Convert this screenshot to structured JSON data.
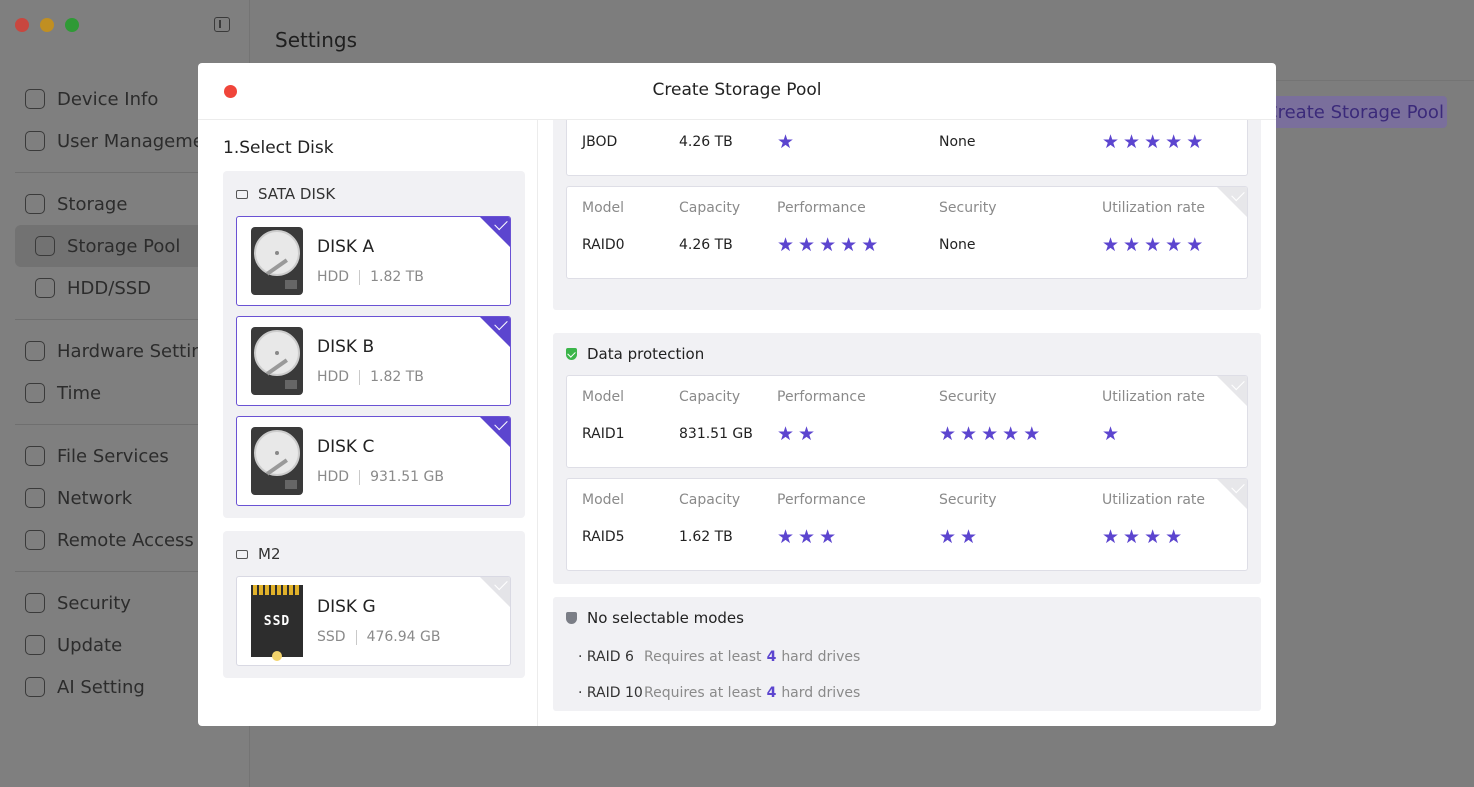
{
  "app": {
    "title": "Settings",
    "bg_create_button": "Create Storage Pool",
    "sidebar": [
      {
        "label": "Device Info",
        "icon": "device-info-icon"
      },
      {
        "label": "User Management",
        "icon": "user-icon"
      },
      {
        "label": "Storage",
        "icon": "storage-icon"
      },
      {
        "label": "Storage Pool",
        "icon": "storage-pool-icon",
        "active": true
      },
      {
        "label": "HDD/SSD",
        "icon": "hdd-icon"
      },
      {
        "label": "Hardware Settings",
        "icon": "hardware-icon"
      },
      {
        "label": "Time",
        "icon": "clock-icon"
      },
      {
        "label": "File Services",
        "icon": "file-services-icon"
      },
      {
        "label": "Network",
        "icon": "network-icon"
      },
      {
        "label": "Remote Access",
        "icon": "remote-access-icon"
      },
      {
        "label": "Security",
        "icon": "shield-icon"
      },
      {
        "label": "Update",
        "icon": "update-icon"
      },
      {
        "label": "AI Setting",
        "icon": "ai-icon"
      }
    ]
  },
  "modal": {
    "title": "Create Storage Pool",
    "step_title": "1.Select Disk",
    "sata_group": {
      "label": "SATA DISK",
      "disks": [
        {
          "name": "DISK A",
          "type": "HDD",
          "size": "1.82 TB",
          "selected": true
        },
        {
          "name": "DISK B",
          "type": "HDD",
          "size": "1.82 TB",
          "selected": true
        },
        {
          "name": "DISK C",
          "type": "HDD",
          "size": "931.51 GB",
          "selected": true
        }
      ]
    },
    "m2_group": {
      "label": "M2",
      "disks": [
        {
          "name": "DISK G",
          "type": "SSD",
          "size": "476.94 GB",
          "selected": false,
          "image_label": "SSD"
        }
      ]
    },
    "column_labels": {
      "model": "Model",
      "capacity": "Capacity",
      "performance": "Performance",
      "security": "Security",
      "utilization": "Utilization rate"
    },
    "no_protection_modes": [
      {
        "model": "JBOD",
        "capacity": "4.26 TB",
        "performance": 1,
        "security": "None",
        "utilization": 5
      },
      {
        "model": "RAID0",
        "capacity": "4.26 TB",
        "performance": 5,
        "security": "None",
        "utilization": 5
      }
    ],
    "data_protection": {
      "label": "Data protection",
      "modes": [
        {
          "model": "RAID1",
          "capacity": "831.51 GB",
          "performance": 2,
          "security": 5,
          "utilization": 1
        },
        {
          "model": "RAID5",
          "capacity": "1.62 TB",
          "performance": 3,
          "security": 2,
          "utilization": 4
        }
      ]
    },
    "no_selectable": {
      "label": "No selectable modes",
      "items": [
        {
          "bullet": "· RAID 6",
          "req_prefix": "Requires at least",
          "count": "4",
          "req_suffix": "hard drives"
        },
        {
          "bullet": "· RAID 10",
          "req_prefix": "Requires at least",
          "count": "4",
          "req_suffix": "hard drives"
        }
      ]
    },
    "colors": {
      "accent": "#5c45cf",
      "protect_green": "#3bb54a",
      "close_red": "#f0453a"
    }
  }
}
